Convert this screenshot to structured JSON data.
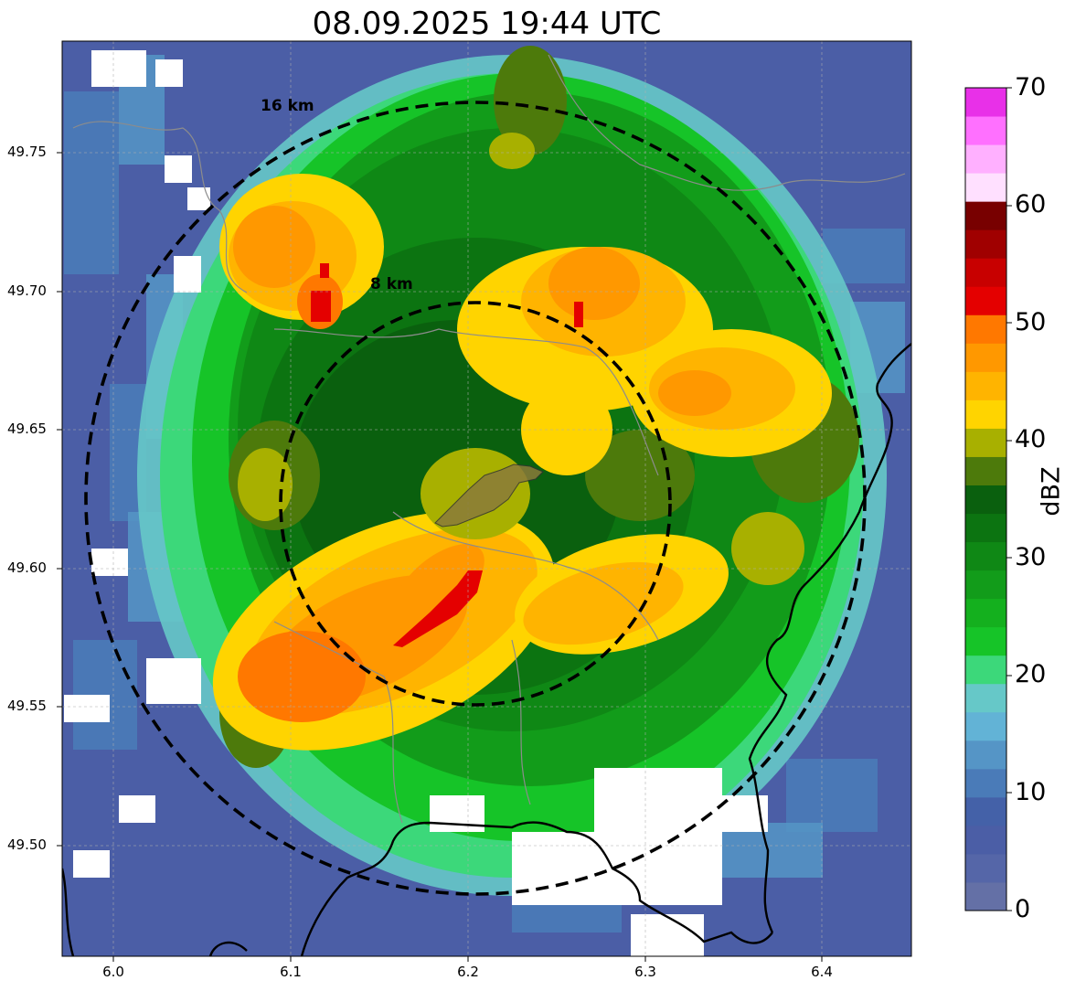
{
  "title": "08.09.2025 19:44 UTC",
  "map": {
    "lon_range": [
      5.97,
      6.45
    ],
    "lat_range": [
      49.46,
      49.79
    ],
    "center": {
      "lon": 6.2,
      "lat": 49.623
    },
    "x_ticks": [
      "6.0",
      "6.1",
      "6.2",
      "6.3",
      "6.4"
    ],
    "y_ticks": [
      "49.75",
      "49.70",
      "49.65",
      "49.60",
      "49.55",
      "49.50"
    ],
    "rings": [
      {
        "label": "16 km",
        "radius_km": 16
      },
      {
        "label": "8 km",
        "radius_km": 8
      }
    ],
    "grid": true
  },
  "colorbar": {
    "label": "dBZ",
    "ticks": [
      "70",
      "60",
      "50",
      "40",
      "30",
      "20",
      "10",
      "0"
    ],
    "min": 0,
    "max": 70,
    "colors": [
      "#6470a6",
      "#5566a8",
      "#4b5ea6",
      "#4461a8",
      "#4a7bb8",
      "#5595c6",
      "#62b3d6",
      "#66c8c8",
      "#3cd87a",
      "#16c428",
      "#14b01e",
      "#129c1a",
      "#0f8815",
      "#0c7411",
      "#0a600e",
      "#4d7a0b",
      "#a8b000",
      "#ffd400",
      "#ffb400",
      "#ff9800",
      "#ff7800",
      "#e40000",
      "#c80000",
      "#a00000",
      "#780000",
      "#ffe0ff",
      "#ffb0ff",
      "#ff70ff",
      "#e830e8"
    ]
  },
  "legend_colors": {
    "white_gap": "#ffffff",
    "border": "#000000",
    "admin": "#8c8c8c"
  }
}
